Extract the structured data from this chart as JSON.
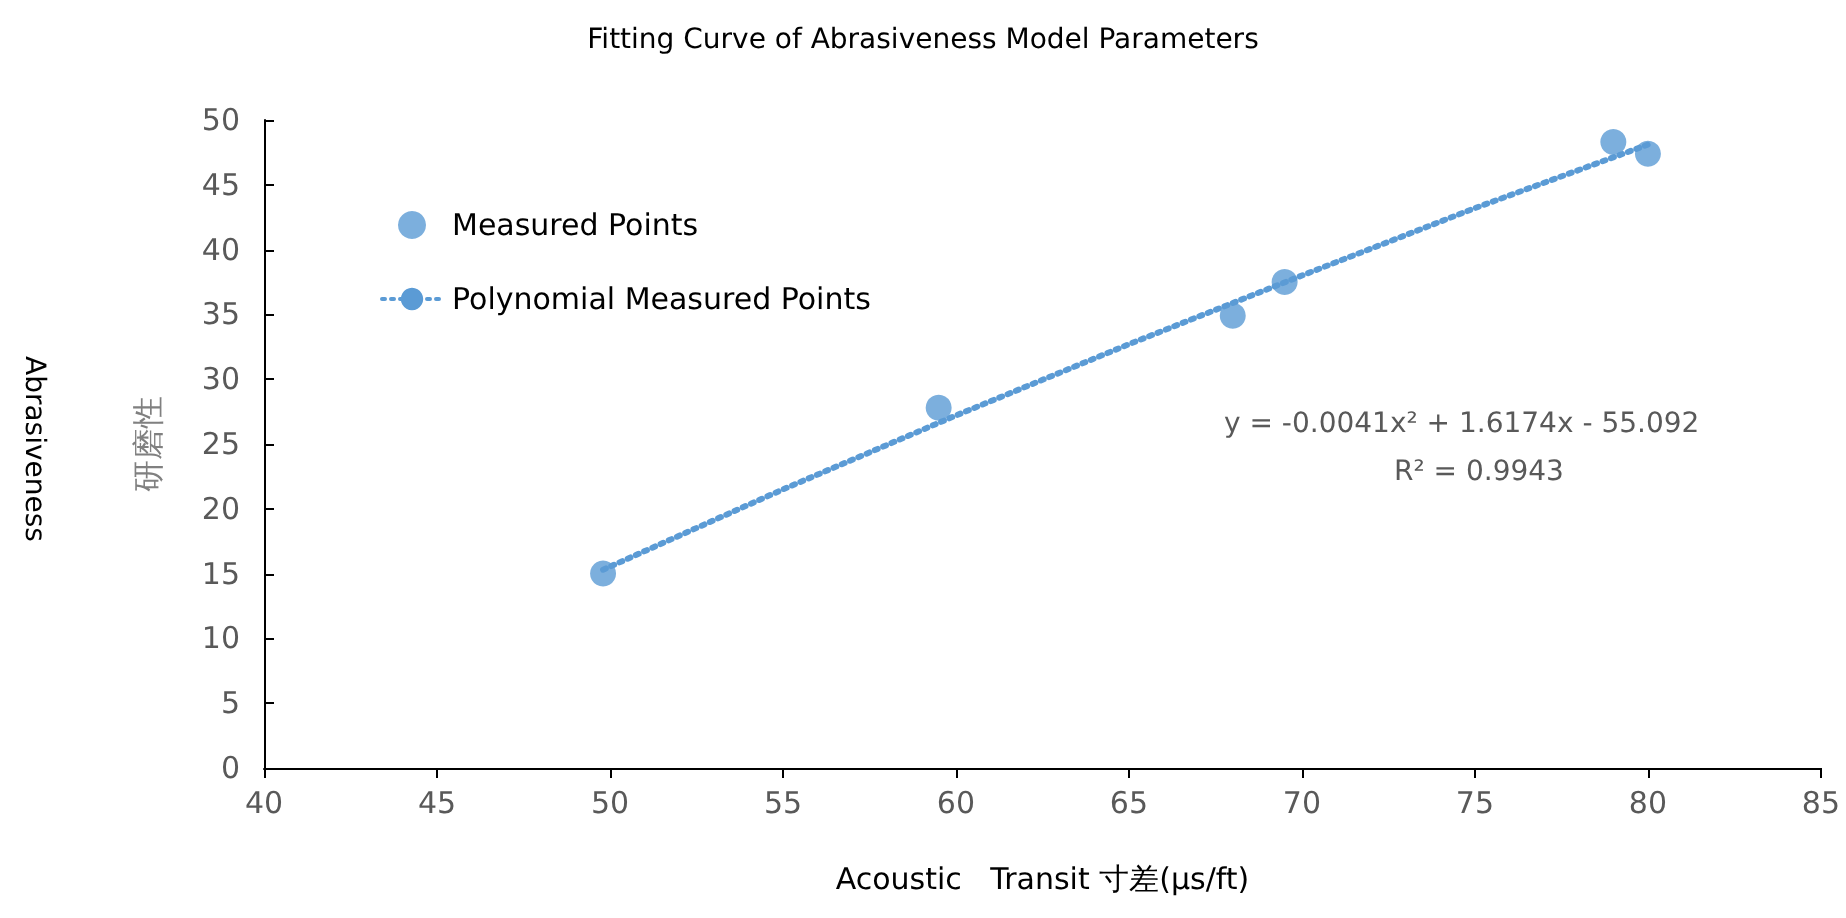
{
  "chart_data": {
    "type": "scatter",
    "title": "Fitting Curve of Abrasiveness Model Parameters",
    "xlabel": "Acoustic   Transit 寸差(μs/ft)",
    "ylabel": "研磨性",
    "annotations": [
      "Abrasiveness",
      "y = -0.0041x² + 1.6174x - 55.092",
      "R² = 0.9943"
    ],
    "series": [
      {
        "name": "Measured Points",
        "color": "#5b9bd5",
        "marker": "circle",
        "x": [
          49.8,
          59.5,
          68.0,
          69.5,
          79.0,
          80.0
        ],
        "values": [
          15.0,
          27.8,
          34.9,
          37.5,
          48.3,
          47.4
        ]
      },
      {
        "name": "Polynomial Measured Points",
        "type": "line",
        "color": "#5b9bd5",
        "marker": "none",
        "line_style": "dotted",
        "x": [
          49.8,
          55,
          60,
          65,
          70,
          75,
          80
        ],
        "values": [
          15.3,
          21.5,
          27.2,
          32.7,
          38.0,
          43.2,
          48.1
        ]
      }
    ],
    "xlim": [
      40,
      85
    ],
    "xticks": [
      40,
      45,
      50,
      55,
      60,
      65,
      70,
      75,
      80,
      85
    ],
    "ylim": [
      0,
      50
    ],
    "yticks": [
      0,
      5,
      10,
      15,
      20,
      25,
      30,
      35,
      40,
      45,
      50
    ],
    "grid": false,
    "legend": "top left"
  }
}
